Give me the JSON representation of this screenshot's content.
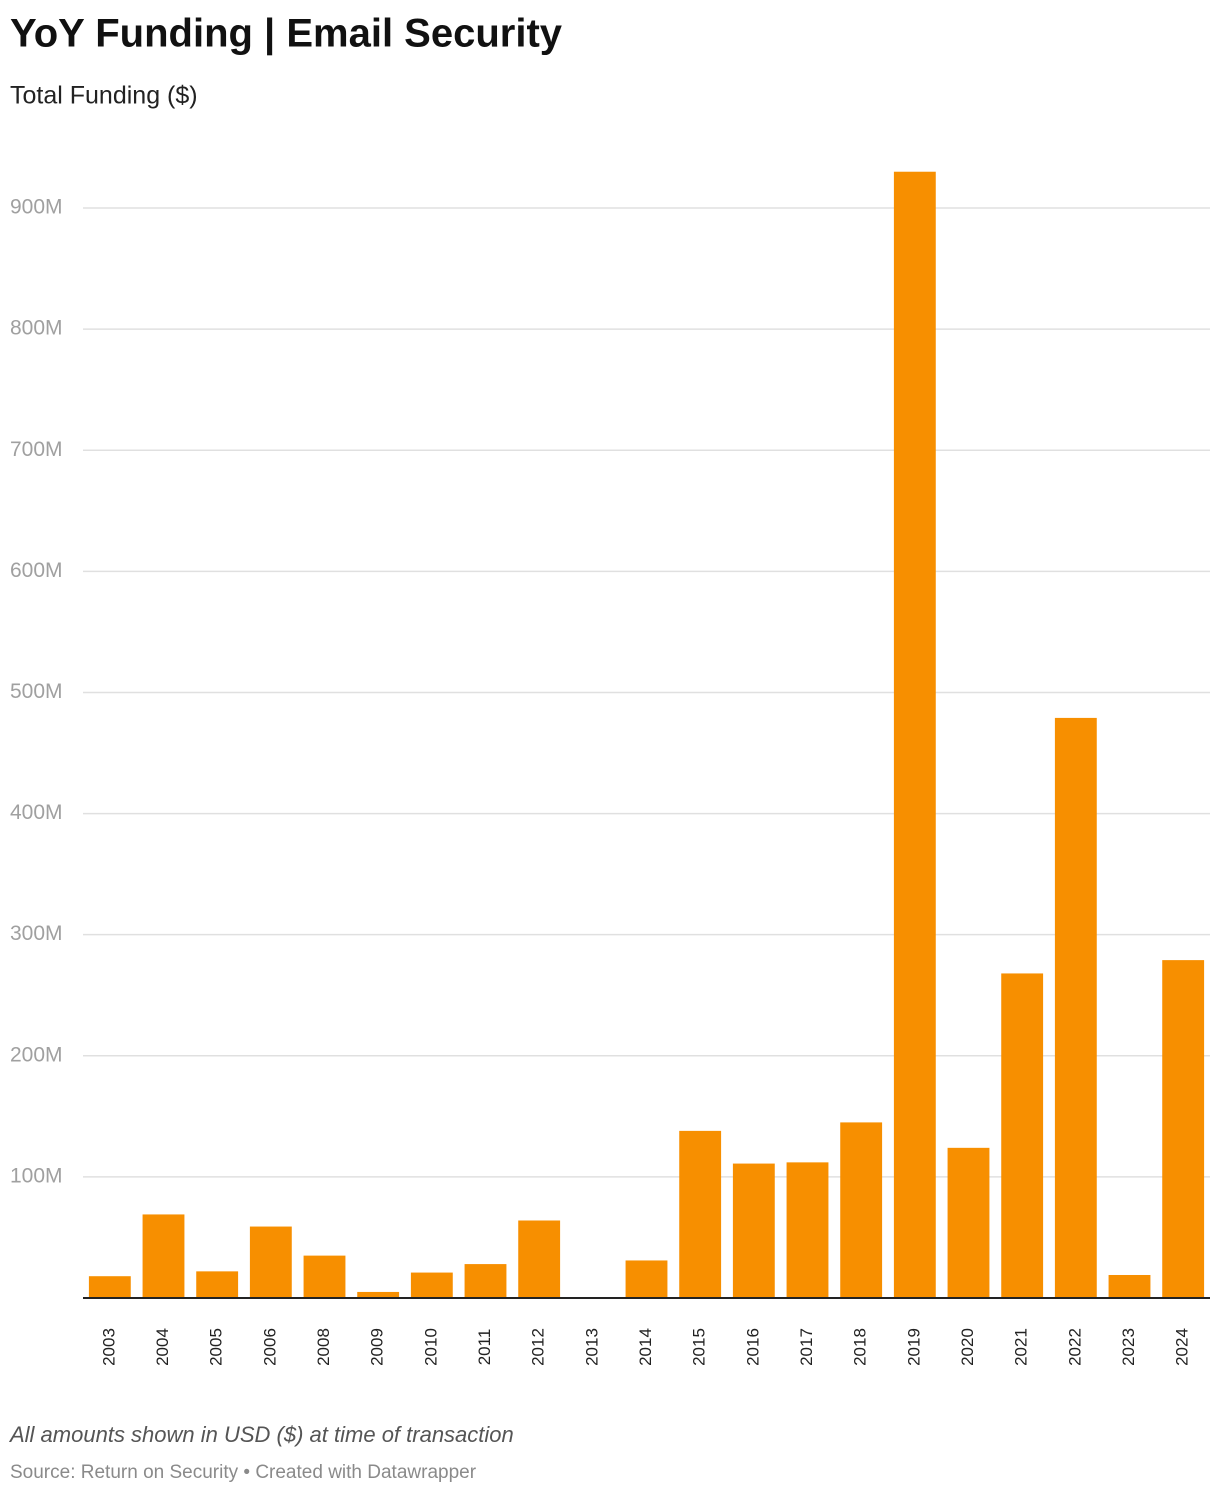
{
  "chart_data": {
    "type": "bar",
    "title": "YoY Funding | Email Security",
    "subtitle": "Total Funding ($)",
    "note": "All amounts shown in USD ($) at time of transaction",
    "source": "Source: Return on Security • Created with Datawrapper",
    "categories": [
      "2003",
      "2004",
      "2005",
      "2006",
      "2008",
      "2009",
      "2010",
      "2011",
      "2012",
      "2013",
      "2014",
      "2015",
      "2016",
      "2017",
      "2018",
      "2019",
      "2020",
      "2021",
      "2022",
      "2023",
      "2024"
    ],
    "values": [
      18000000,
      69000000,
      22000000,
      59000000,
      35000000,
      5000000,
      21000000,
      28000000,
      64000000,
      0,
      31000000,
      138000000,
      111000000,
      112000000,
      145000000,
      930000000,
      124000000,
      268000000,
      479000000,
      19000000,
      279000000
    ],
    "color": "#f78f00",
    "ylim": [
      0,
      950000000
    ],
    "yticks": [
      {
        "value": 100000000,
        "label": "100M"
      },
      {
        "value": 200000000,
        "label": "200M"
      },
      {
        "value": 300000000,
        "label": "300M"
      },
      {
        "value": 400000000,
        "label": "400M"
      },
      {
        "value": 500000000,
        "label": "500M"
      },
      {
        "value": 600000000,
        "label": "600M"
      },
      {
        "value": 700000000,
        "label": "700M"
      },
      {
        "value": 800000000,
        "label": "800M"
      },
      {
        "value": 900000000,
        "label": "900M"
      }
    ],
    "grid": true
  }
}
